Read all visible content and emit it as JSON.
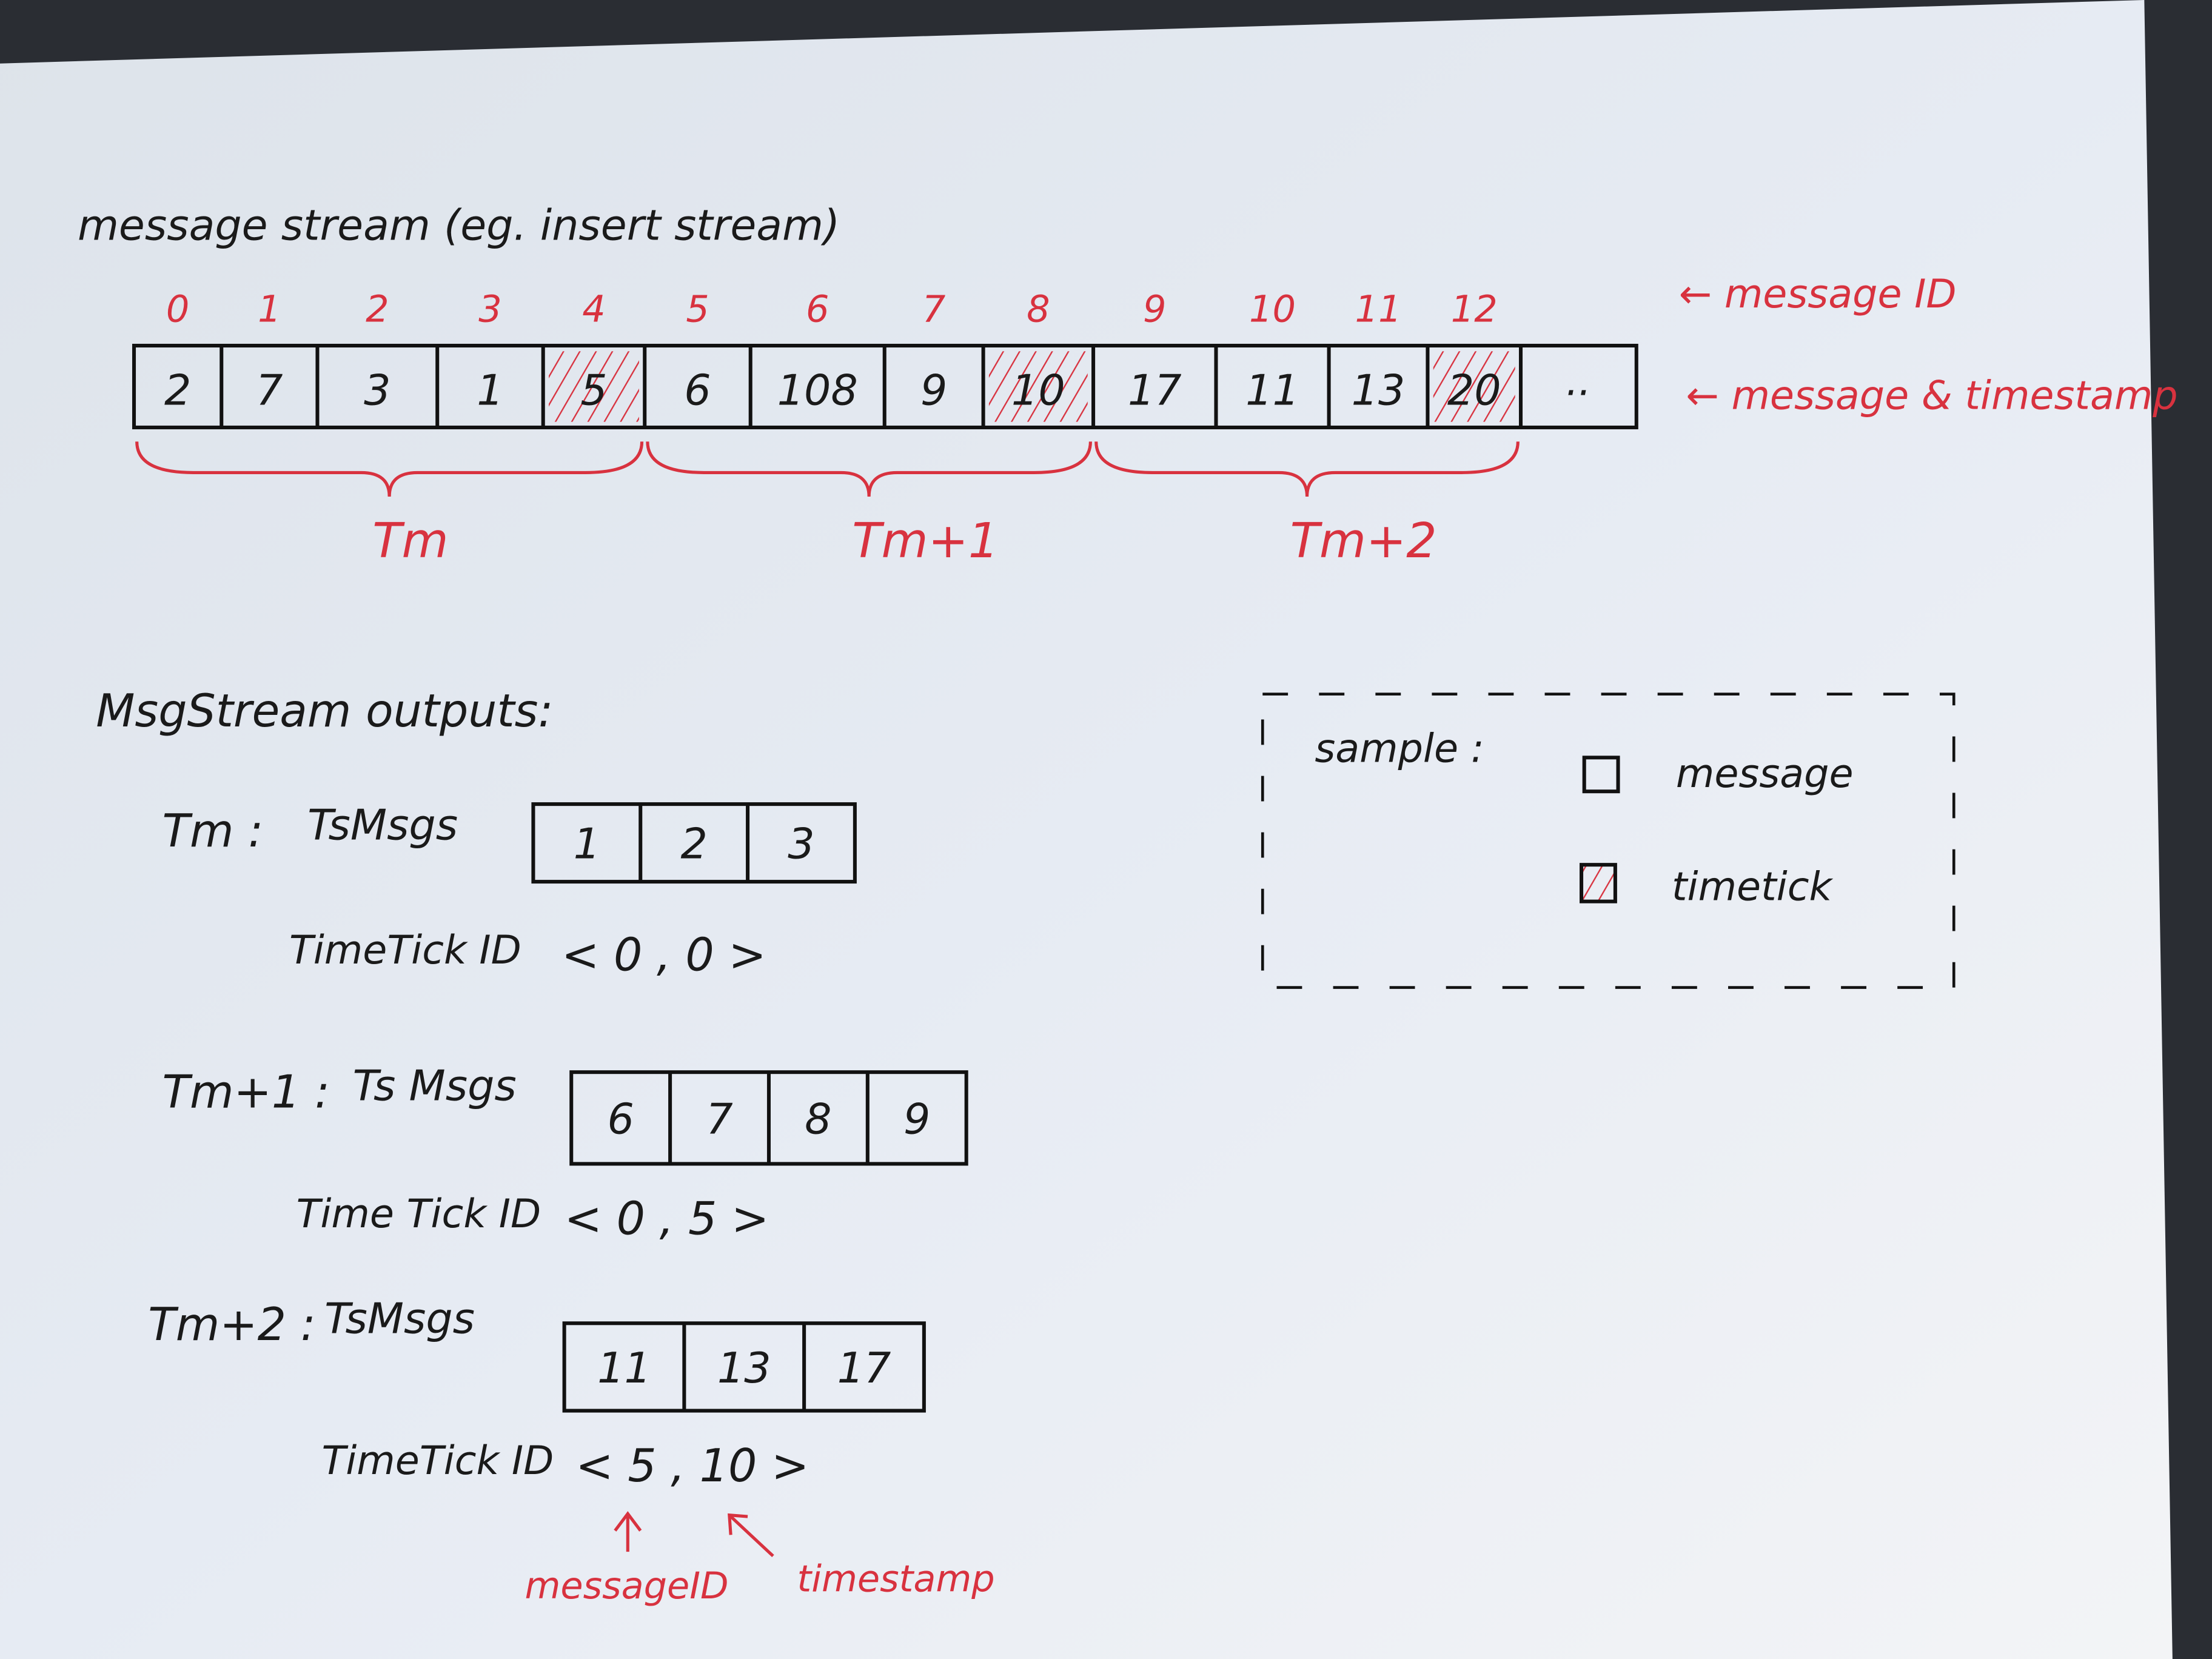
{
  "title": "message stream (eg. insert stream)",
  "stream": {
    "message_ids": [
      "0",
      "1",
      "2",
      "3",
      "4",
      "5",
      "6",
      "7",
      "8",
      "9",
      "10",
      "11",
      "12"
    ],
    "timestamps": [
      "2",
      "7",
      "3",
      "1",
      "5",
      "6",
      "108",
      "9",
      "10",
      "17",
      "11",
      "13",
      "20"
    ],
    "timetick_indices": [
      4,
      8,
      12
    ],
    "ellipsis": "..",
    "id_label": "← message ID",
    "ts_label": "← message & timestamp",
    "groups": [
      {
        "label": "Tm",
        "from": 0,
        "to": 4
      },
      {
        "label": "Tm+1",
        "from": 5,
        "to": 8
      },
      {
        "label": "Tm+2",
        "from": 9,
        "to": 12
      }
    ]
  },
  "outputs": {
    "heading": "MsgStream outputs:",
    "rows": [
      {
        "label": "Tm :",
        "msgs_label": "TsMsgs",
        "msgs": [
          "1",
          "2",
          "3"
        ],
        "tt_label": "TimeTick ID",
        "tt_value": "< 0 , 0 >"
      },
      {
        "label": "Tm+1 :",
        "msgs_label": "Ts Msgs",
        "msgs": [
          "6",
          "7",
          "8",
          "9"
        ],
        "tt_label": "Time Tick ID",
        "tt_value": "< 0 , 5 >"
      },
      {
        "label": "Tm+2 :",
        "msgs_label": "TsMsgs",
        "msgs": [
          "11",
          "13",
          "17"
        ],
        "tt_label": "TimeTick ID",
        "tt_value": "< 5 , 10 >"
      }
    ],
    "annotation_message_id": "messageID",
    "annotation_timestamp": "timestamp"
  },
  "legend": {
    "title": "sample :",
    "message": "message",
    "timetick": "timetick"
  },
  "colors": {
    "ink": "#1a1a1a",
    "red": "#d8323f",
    "paper": "#dfe5ee"
  }
}
